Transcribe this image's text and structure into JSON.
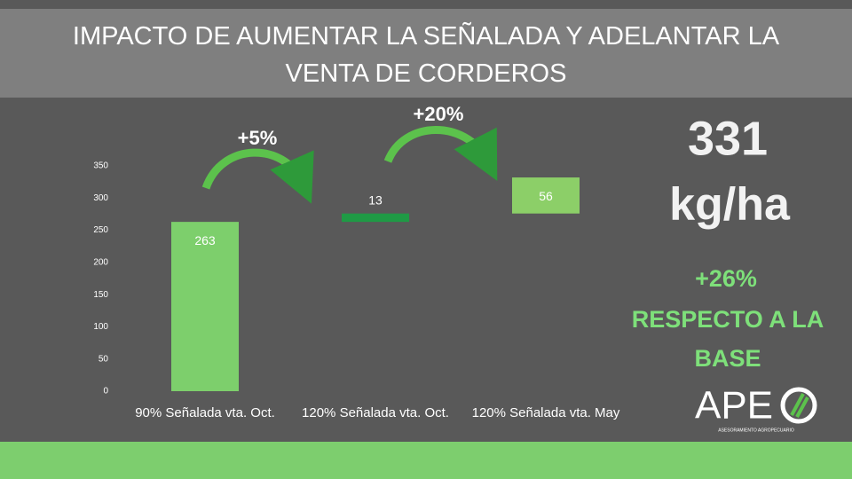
{
  "chart_data": {
    "type": "waterfall",
    "title": "IMPACTO DE AUMENTAR LA SEÑALADA Y ADELANTAR LA VENTA DE CORDEROS",
    "categories": [
      "90% Señalada vta. Oct.",
      "120% Señalada vta. Oct.",
      "120% Señalada vta. May"
    ],
    "values": [
      263,
      13,
      56
    ],
    "colors": [
      "#7dcf6c",
      "#1f9a45",
      "#8ccf68"
    ],
    "ylim": [
      0,
      350
    ],
    "yticks": [
      0,
      50,
      100,
      150,
      200,
      250,
      300,
      350
    ],
    "grid": false,
    "annotations": [
      "+5%",
      "+20%"
    ]
  },
  "summary": {
    "value": "331",
    "unit": "kg/ha",
    "change": "+26%",
    "note": "RESPECTO A LA BASE"
  },
  "logo": {
    "text": "APE",
    "subtitle": "ASESORAMIENTO AGROPECUARIO"
  }
}
